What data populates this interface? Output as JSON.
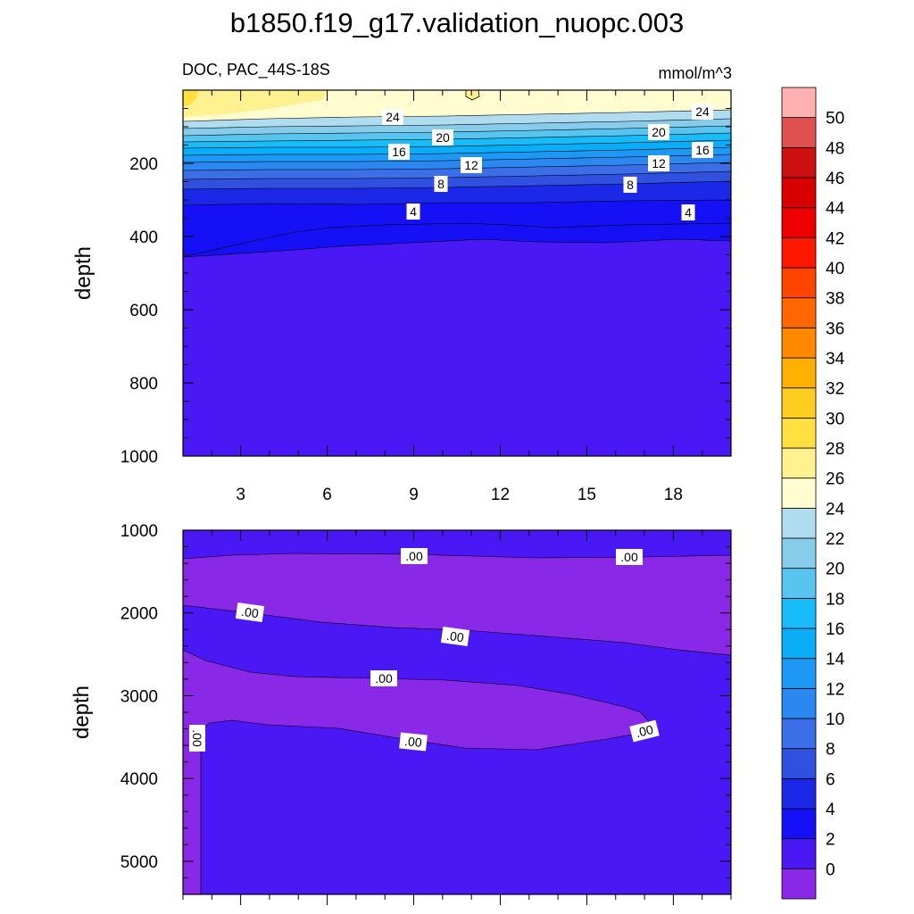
{
  "chart_data": {
    "type": "contour",
    "title": "b1850.f19_g17.validation_nuopc.003",
    "left_string": "DOC, PAC_44S-18S",
    "right_string": "mmol/m^3",
    "colorbar": {
      "levels": [
        "0",
        "2",
        "4",
        "6",
        "8",
        "10",
        "12",
        "14",
        "16",
        "18",
        "20",
        "22",
        "24",
        "26",
        "28",
        "30",
        "32",
        "34",
        "36",
        "38",
        "40",
        "42",
        "44",
        "46",
        "48",
        "50"
      ],
      "colors": [
        "#8a28e8",
        "#4a18f5",
        "#1510f5",
        "#1b28e8",
        "#3050e0",
        "#3c6ee8",
        "#2a88f0",
        "#1e98f5",
        "#0aaef8",
        "#18bcf8",
        "#58c4f0",
        "#88cceb",
        "#b0dcf0",
        "#fffcd0",
        "#fff090",
        "#ffe040",
        "#ffcc20",
        "#ffb000",
        "#ff8800",
        "#ff6600",
        "#ff4400",
        "#ff1800",
        "#ee0000",
        "#d80000",
        "#cc1010",
        "#e05050",
        "#ffb0b0"
      ]
    },
    "panels": [
      {
        "name": "upper",
        "ylabel": "depth",
        "ylim": [
          0,
          1000
        ],
        "yticks": [
          "200",
          "400",
          "600",
          "800",
          "1000"
        ],
        "xlim": [
          1,
          20
        ],
        "xticks": [
          "3",
          "6",
          "9",
          "12",
          "15",
          "18"
        ],
        "contour_labels": [
          "24",
          "24",
          "20",
          "20",
          "16",
          "16",
          "12",
          "12",
          "8",
          "8",
          "4",
          "4"
        ]
      },
      {
        "name": "lower",
        "ylabel": "depth",
        "ylim": [
          1000,
          5400
        ],
        "yticks": [
          "1000",
          "2000",
          "3000",
          "4000",
          "5000"
        ],
        "xlim": [
          1,
          20
        ],
        "xticks": [],
        "contour_labels": [
          ".00",
          ".00",
          ".00",
          ".00",
          ".00",
          ".00",
          ".00",
          ".00"
        ]
      }
    ]
  }
}
